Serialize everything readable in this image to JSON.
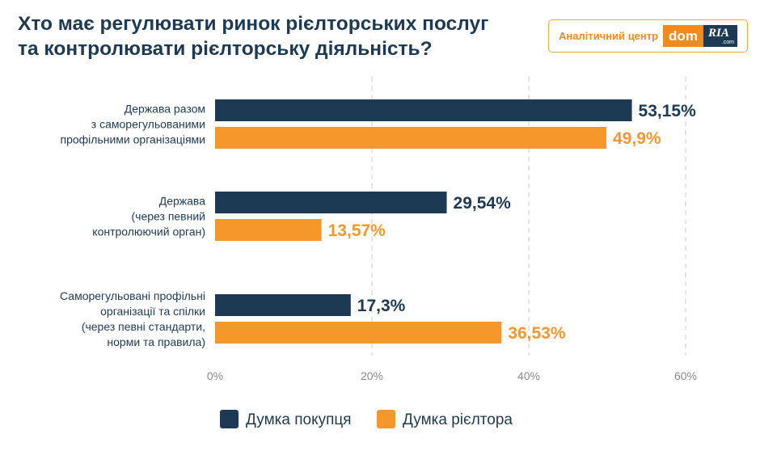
{
  "title": {
    "line1": "Хто має регулювати ринок рієлторських послуг",
    "line2": "та контролювати рієлторську діяльність?"
  },
  "badge": {
    "text": "Аналітичний центр",
    "logo_dom": "dom",
    "logo_ria": "RIA",
    "logo_sub": ".com"
  },
  "chart_data": {
    "type": "bar",
    "orientation": "horizontal",
    "categories": [
      [
        "Держава разом",
        "з саморегульованими",
        "профільними організаціями"
      ],
      [
        "Держава",
        "(через певний",
        "контролюючий орган)"
      ],
      [
        "Саморегульовані профільні",
        "організації та спілки",
        "(через певні стандарти,",
        "норми та правила)"
      ]
    ],
    "series": [
      {
        "name": "Думка покупця",
        "values": [
          53.15,
          29.54,
          17.3
        ],
        "labels": [
          "53,15%",
          "29,54%",
          "17,3%"
        ],
        "color": "#1d3a55"
      },
      {
        "name": "Думка рієлтора",
        "values": [
          49.9,
          13.57,
          36.53
        ],
        "labels": [
          "49,9%",
          "13,57%",
          "36,53%"
        ],
        "color": "#f5972b"
      }
    ],
    "xlim": [
      0,
      60
    ],
    "xticks": [
      0,
      20,
      40,
      60
    ],
    "xtick_labels": [
      "0%",
      "20%",
      "40%",
      "60%"
    ],
    "grid": true,
    "legend_position": "bottom"
  }
}
